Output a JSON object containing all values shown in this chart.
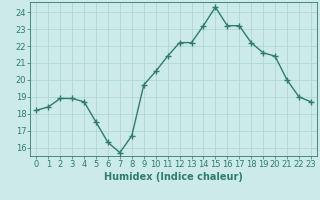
{
  "x": [
    0,
    1,
    2,
    3,
    4,
    5,
    6,
    7,
    8,
    9,
    10,
    11,
    12,
    13,
    14,
    15,
    16,
    17,
    18,
    19,
    20,
    21,
    22,
    23
  ],
  "y": [
    18.2,
    18.4,
    18.9,
    18.9,
    18.7,
    17.5,
    16.3,
    15.7,
    16.7,
    19.7,
    20.5,
    21.4,
    22.2,
    22.2,
    23.2,
    24.3,
    23.2,
    23.2,
    22.2,
    21.6,
    21.4,
    20.0,
    19.0,
    18.7
  ],
  "line_color": "#2e7d6e",
  "marker": "+",
  "marker_size": 4,
  "marker_lw": 1.0,
  "line_width": 1.0,
  "bg_color": "#cceae7",
  "grid_color": "#aad4d0",
  "xlabel": "Humidex (Indice chaleur)",
  "xlim": [
    -0.5,
    23.5
  ],
  "ylim": [
    15.5,
    24.6
  ],
  "xticks": [
    0,
    1,
    2,
    3,
    4,
    5,
    6,
    7,
    8,
    9,
    10,
    11,
    12,
    13,
    14,
    15,
    16,
    17,
    18,
    19,
    20,
    21,
    22,
    23
  ],
  "yticks": [
    16,
    17,
    18,
    19,
    20,
    21,
    22,
    23,
    24
  ],
  "tick_fontsize": 6,
  "label_fontsize": 7
}
